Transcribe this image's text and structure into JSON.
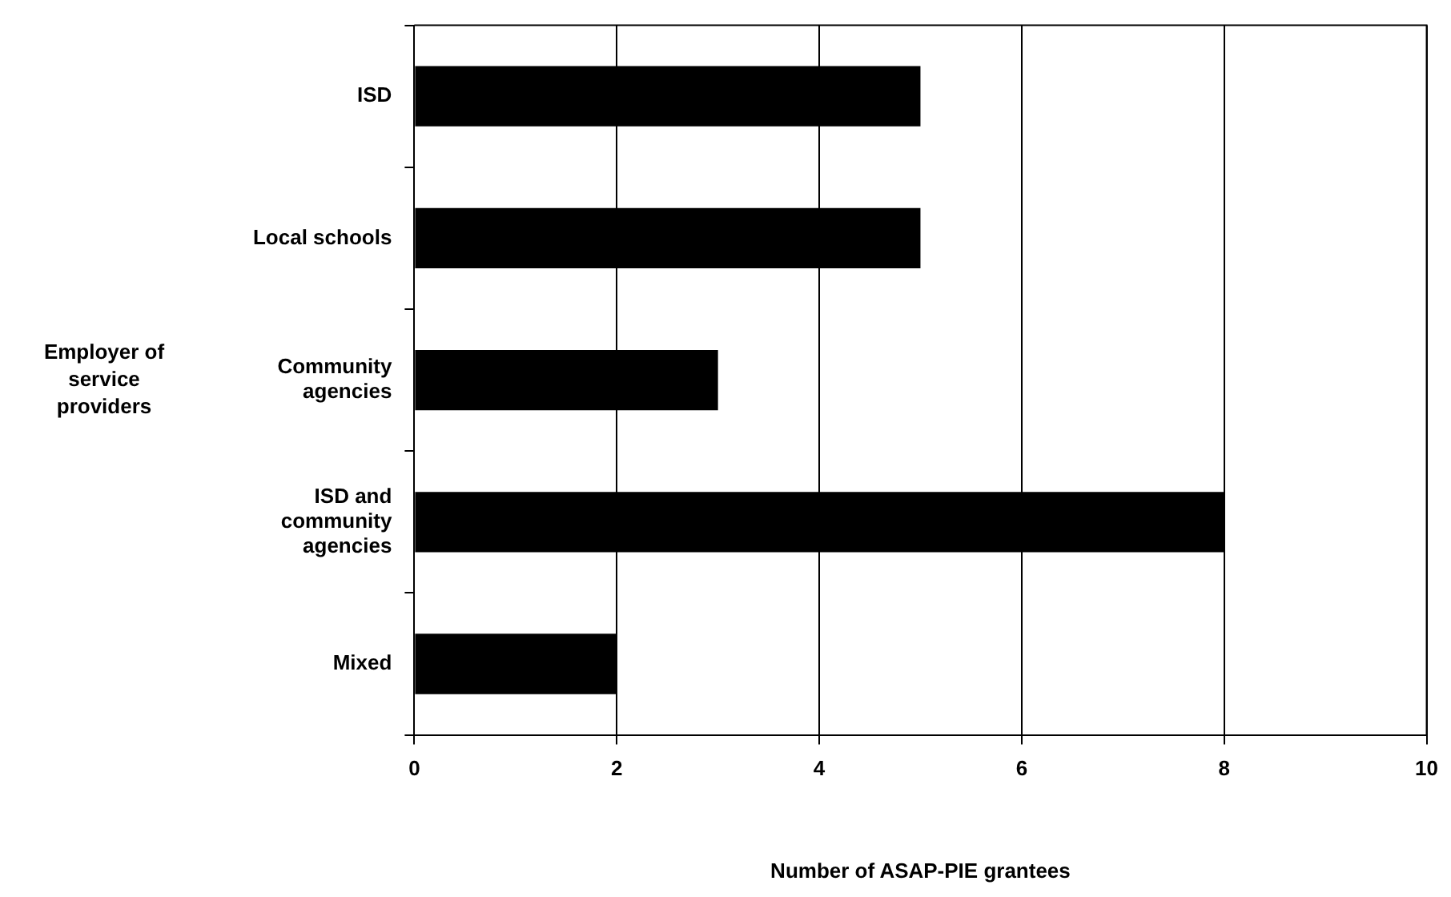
{
  "chart_data": {
    "type": "bar",
    "orientation": "horizontal",
    "xlabel": "Number of ASAP-PIE grantees",
    "ylabel": "Employer of service providers",
    "categories": [
      "ISD",
      "Local schools",
      "Community agencies",
      "ISD and community agencies",
      "Mixed"
    ],
    "values": [
      5,
      5,
      3,
      8,
      2
    ],
    "color": "#000000",
    "xlim": [
      0,
      10
    ],
    "xticks": [
      0,
      2,
      4,
      6,
      8,
      10
    ],
    "grid": "x",
    "legend": false
  }
}
